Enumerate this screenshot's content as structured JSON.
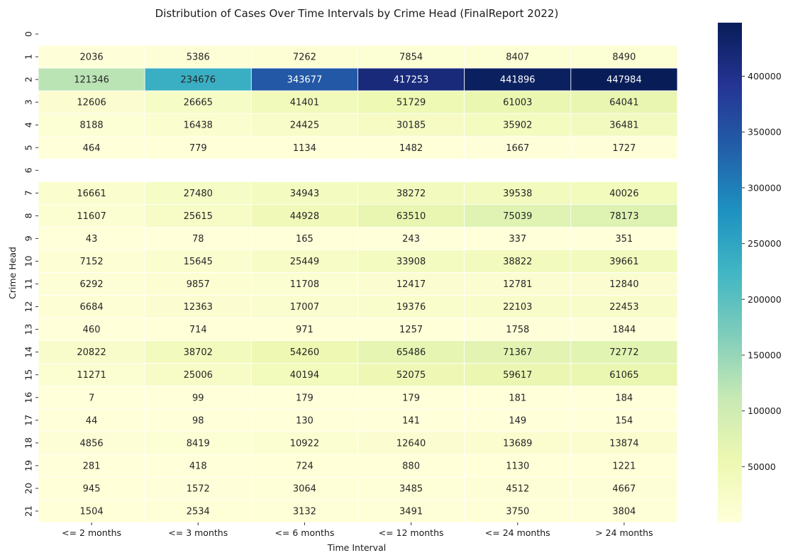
{
  "chart_data": {
    "type": "heatmap",
    "title": "Distribution of Cases Over Time Intervals by Crime Head (FinalReport 2022)",
    "xlabel": "Time Interval",
    "ylabel": "Crime Head",
    "x_categories": [
      "<= 2 months",
      "<= 3 months",
      "<= 6 months",
      "<= 12 months",
      "<= 24 months",
      "> 24 months"
    ],
    "y_categories": [
      "0",
      "1",
      "2",
      "3",
      "4",
      "5",
      "6",
      "7",
      "8",
      "9",
      "10",
      "11",
      "12",
      "13",
      "14",
      "15",
      "16",
      "17",
      "18",
      "19",
      "20",
      "21"
    ],
    "values": [
      [
        null,
        null,
        null,
        null,
        null,
        null
      ],
      [
        2036,
        5386,
        7262,
        7854,
        8407,
        8490
      ],
      [
        121346,
        234676,
        343677,
        417253,
        441896,
        447984
      ],
      [
        12606,
        26665,
        41401,
        51729,
        61003,
        64041
      ],
      [
        8188,
        16438,
        24425,
        30185,
        35902,
        36481
      ],
      [
        464,
        779,
        1134,
        1482,
        1667,
        1727
      ],
      [
        null,
        null,
        null,
        null,
        null,
        null
      ],
      [
        16661,
        27480,
        34943,
        38272,
        39538,
        40026
      ],
      [
        11607,
        25615,
        44928,
        63510,
        75039,
        78173
      ],
      [
        43,
        78,
        165,
        243,
        337,
        351
      ],
      [
        7152,
        15645,
        25449,
        33908,
        38822,
        39661
      ],
      [
        6292,
        9857,
        11708,
        12417,
        12781,
        12840
      ],
      [
        6684,
        12363,
        17007,
        19376,
        22103,
        22453
      ],
      [
        460,
        714,
        971,
        1257,
        1758,
        1844
      ],
      [
        20822,
        38702,
        54260,
        65486,
        71367,
        72772
      ],
      [
        11271,
        25006,
        40194,
        52075,
        59617,
        61065
      ],
      [
        7,
        99,
        179,
        179,
        181,
        184
      ],
      [
        44,
        98,
        130,
        141,
        149,
        154
      ],
      [
        4856,
        8419,
        10922,
        12640,
        13689,
        13874
      ],
      [
        281,
        418,
        724,
        880,
        1130,
        1221
      ],
      [
        945,
        1572,
        3064,
        3485,
        4512,
        4667
      ],
      [
        1504,
        2534,
        3132,
        3491,
        3750,
        3804
      ]
    ],
    "colormap": "YlGnBu",
    "colorbar": {
      "vmin": 7,
      "vmax": 447984,
      "ticks": [
        50000,
        100000,
        150000,
        200000,
        250000,
        300000,
        350000,
        400000
      ]
    },
    "annotations": true,
    "grid": false
  }
}
